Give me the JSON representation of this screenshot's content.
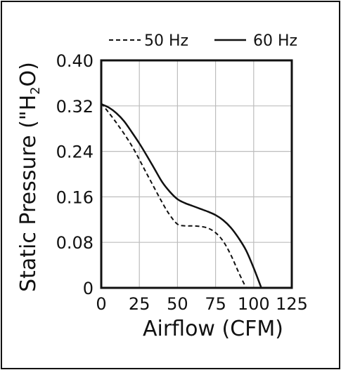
{
  "chart_data": {
    "type": "line",
    "xlabel": "Airflow (CFM)",
    "ylabel_prefix": "Static Pressure (\"H",
    "ylabel_subscript": "2",
    "ylabel_suffix": "O)",
    "xlim": [
      0,
      125
    ],
    "ylim": [
      0,
      0.4
    ],
    "x_ticks": [
      0,
      25,
      50,
      75,
      100,
      125
    ],
    "x_tick_labels": [
      "0",
      "25",
      "50",
      "75",
      "100",
      "125"
    ],
    "y_ticks": [
      0,
      0.08,
      0.16,
      0.24,
      0.32,
      0.4
    ],
    "y_tick_labels": [
      "0",
      "0.08",
      "0.16",
      "0.24",
      "0.32",
      "0.40"
    ],
    "grid": true,
    "legend_position": "top",
    "series": [
      {
        "name": "50 Hz",
        "style": "dashed",
        "color": "#111111",
        "x": [
          0,
          10,
          20,
          30,
          40,
          45,
          50,
          55,
          60,
          65,
          70,
          75,
          80,
          85,
          90,
          95
        ],
        "y": [
          0.325,
          0.29,
          0.25,
          0.2,
          0.15,
          0.128,
          0.112,
          0.109,
          0.109,
          0.108,
          0.105,
          0.097,
          0.082,
          0.058,
          0.028,
          0.0
        ]
      },
      {
        "name": "60 Hz",
        "style": "solid",
        "color": "#111111",
        "x": [
          0,
          5,
          10,
          15,
          20,
          25,
          30,
          35,
          40,
          45,
          50,
          55,
          60,
          65,
          70,
          75,
          80,
          85,
          90,
          95,
          100,
          105
        ],
        "y": [
          0.323,
          0.317,
          0.307,
          0.293,
          0.274,
          0.254,
          0.232,
          0.209,
          0.186,
          0.169,
          0.156,
          0.149,
          0.144,
          0.139,
          0.134,
          0.128,
          0.119,
          0.106,
          0.088,
          0.066,
          0.035,
          0.0
        ]
      }
    ]
  }
}
